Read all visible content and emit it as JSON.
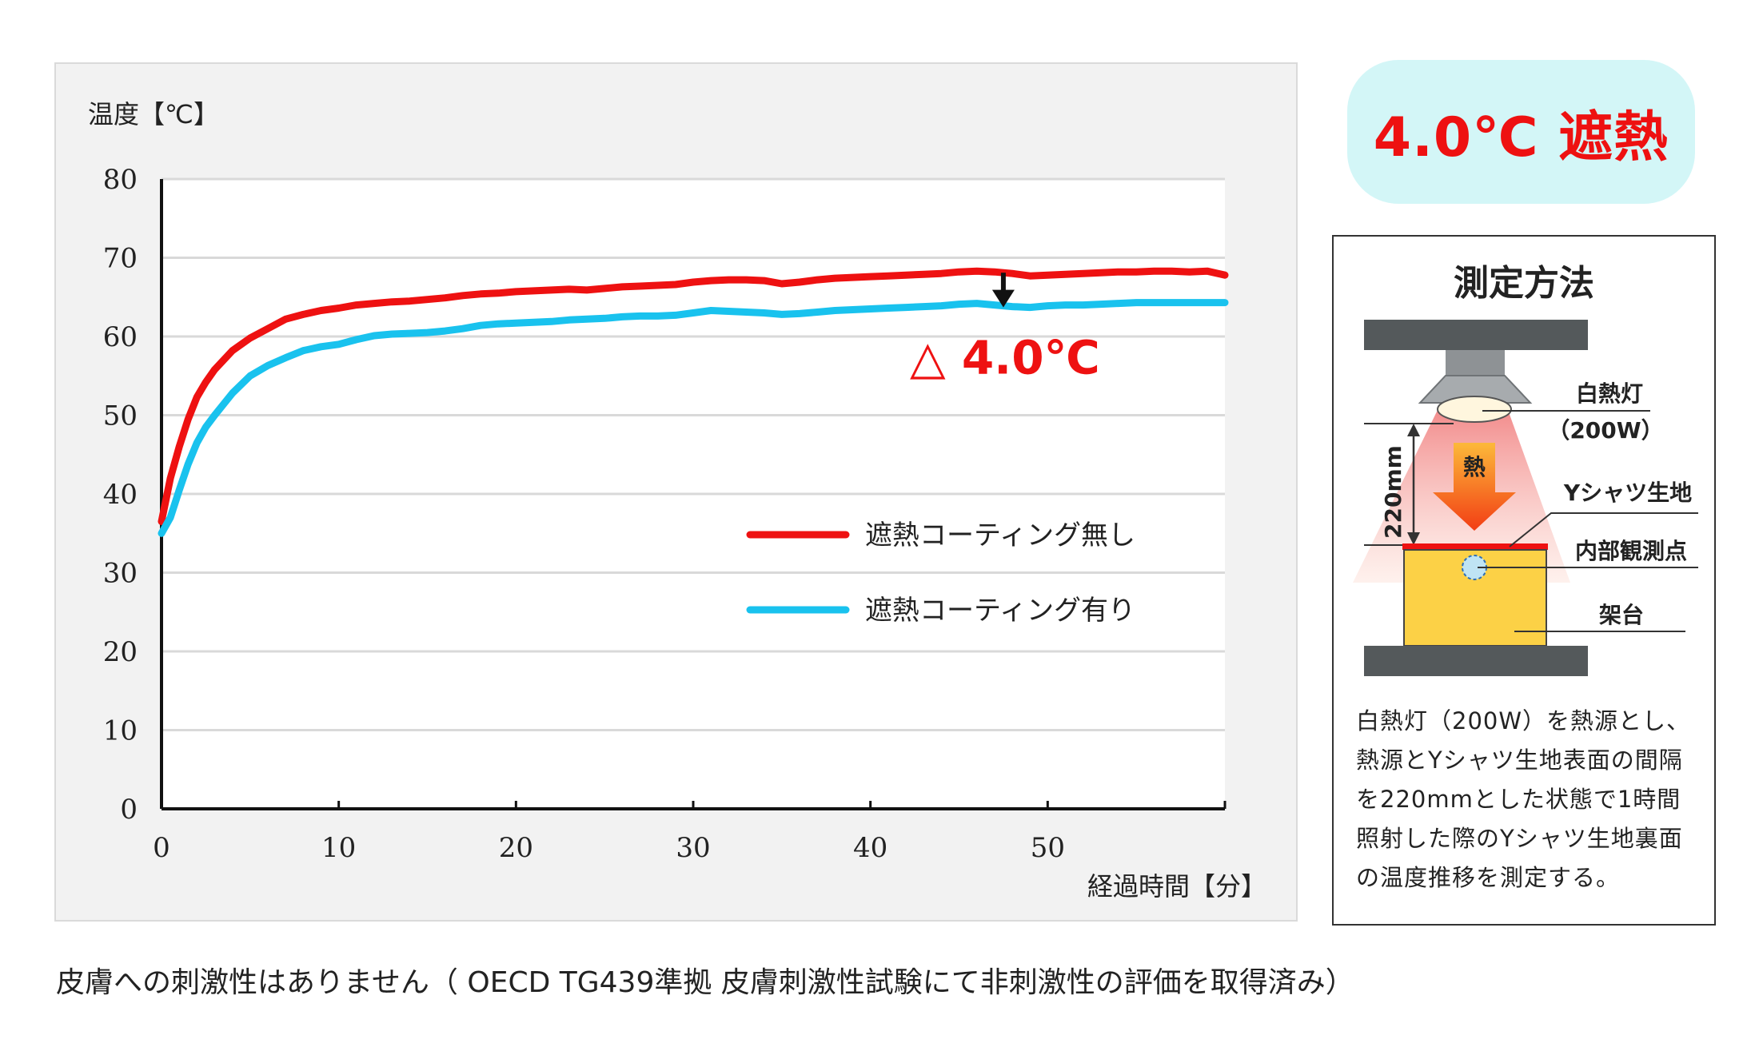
{
  "chart_data": {
    "type": "line",
    "ylabel": "温度【℃】",
    "xlabel": "経過時間【分】",
    "xlim": [
      0,
      60
    ],
    "ylim": [
      0,
      80
    ],
    "x_ticks": [
      "0",
      "10",
      "20",
      "30",
      "40",
      "50"
    ],
    "y_ticks": [
      "0",
      "10",
      "20",
      "30",
      "40",
      "50",
      "60",
      "70",
      "80"
    ],
    "grid": true,
    "legend_position": "center-right",
    "annotation": "△ 4.0℃",
    "annotation_x": 47.5,
    "series": [
      {
        "name": "遮熱コーティング無し",
        "color": "#ee1111",
        "x": [
          0,
          0.5,
          1,
          1.5,
          2,
          2.5,
          3,
          4,
          5,
          6,
          7,
          8,
          9,
          10,
          11,
          12,
          13,
          14,
          15,
          16,
          17,
          18,
          19,
          20,
          21,
          22,
          23,
          24,
          25,
          26,
          27,
          28,
          29,
          30,
          31,
          32,
          33,
          34,
          35,
          36,
          37,
          38,
          39,
          40,
          41,
          42,
          43,
          44,
          45,
          46,
          47,
          48,
          49,
          50,
          51,
          52,
          53,
          54,
          55,
          56,
          57,
          58,
          59,
          60
        ],
        "y": [
          36.5,
          42,
          46,
          49.5,
          52.3,
          54.2,
          55.8,
          58.2,
          59.8,
          61,
          62.2,
          62.8,
          63.3,
          63.6,
          64,
          64.2,
          64.4,
          64.5,
          64.7,
          64.9,
          65.2,
          65.4,
          65.5,
          65.7,
          65.8,
          65.9,
          66,
          65.9,
          66.1,
          66.3,
          66.4,
          66.5,
          66.6,
          66.9,
          67.1,
          67.2,
          67.2,
          67.1,
          66.7,
          66.9,
          67.2,
          67.4,
          67.5,
          67.6,
          67.7,
          67.8,
          67.9,
          68,
          68.2,
          68.3,
          68.2,
          68,
          67.7,
          67.8,
          67.9,
          68,
          68.1,
          68.2,
          68.2,
          68.3,
          68.3,
          68.2,
          68.3,
          67.8
        ]
      },
      {
        "name": "遮熱コーティング有り",
        "color": "#19c2ee",
        "x": [
          0,
          0.5,
          1,
          1.5,
          2,
          2.5,
          3,
          4,
          5,
          6,
          7,
          8,
          9,
          10,
          11,
          12,
          13,
          14,
          15,
          16,
          17,
          18,
          19,
          20,
          21,
          22,
          23,
          24,
          25,
          26,
          27,
          28,
          29,
          30,
          31,
          32,
          33,
          34,
          35,
          36,
          37,
          38,
          39,
          40,
          41,
          42,
          43,
          44,
          45,
          46,
          47,
          48,
          49,
          50,
          51,
          52,
          53,
          54,
          55,
          56,
          57,
          58,
          59,
          60
        ],
        "y": [
          35,
          37,
          40.5,
          43.8,
          46.5,
          48.5,
          50,
          52.8,
          55,
          56.3,
          57.3,
          58.2,
          58.7,
          59,
          59.6,
          60.1,
          60.3,
          60.4,
          60.5,
          60.7,
          61,
          61.4,
          61.6,
          61.7,
          61.8,
          61.9,
          62.1,
          62.2,
          62.3,
          62.5,
          62.6,
          62.6,
          62.7,
          63,
          63.3,
          63.2,
          63.1,
          63,
          62.8,
          62.9,
          63.1,
          63.3,
          63.4,
          63.5,
          63.6,
          63.7,
          63.8,
          63.9,
          64.1,
          64.2,
          64,
          63.8,
          63.7,
          63.9,
          64,
          64,
          64.1,
          64.2,
          64.3,
          64.3,
          64.3,
          64.3,
          64.3,
          64.3
        ]
      }
    ]
  },
  "badge": {
    "text": "4.0℃ 遮熱"
  },
  "method": {
    "title": "測定方法",
    "labels": {
      "lamp": "白熱灯",
      "lamp_power": "（200W）",
      "heat": "熱",
      "distance": "220mm",
      "fabric": "Yシャツ生地",
      "point": "内部観測点",
      "stand": "架台"
    },
    "description": "白熱灯（200W）を熱源とし、熱源とYシャツ生地表面の間隔を220mmとした状態で1時間照射した際のYシャツ生地裏面の温度推移を測定する。",
    "colors": {
      "stand": "#fcd146",
      "fabric": "#ee1111",
      "heat_arrow": "#f45a1c",
      "plate": "#54595b"
    }
  },
  "footnote": "皮膚への刺激性はありません（ OECD TG439準拠 皮膚刺激性試験にて非刺激性の評価を取得済み）"
}
